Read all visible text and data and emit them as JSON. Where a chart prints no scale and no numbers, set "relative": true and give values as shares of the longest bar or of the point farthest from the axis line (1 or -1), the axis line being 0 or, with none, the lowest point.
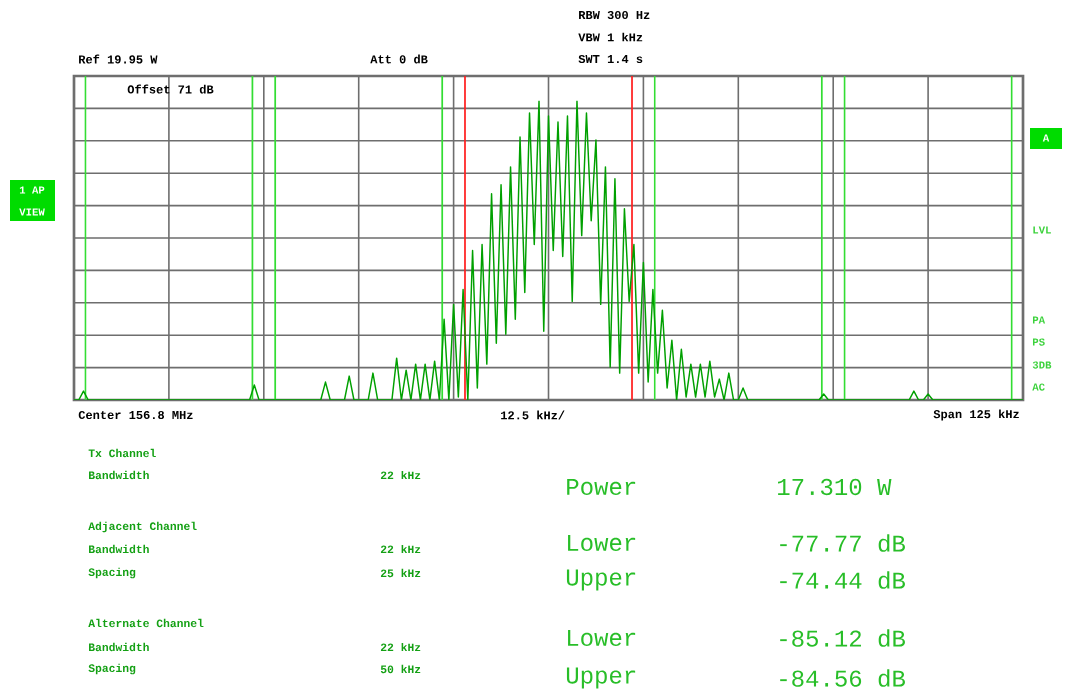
{
  "chart_data": {
    "type": "line",
    "relative": true,
    "color": "#00a000",
    "marker": "none",
    "line_style": "solid",
    "grid": true,
    "categories": [
      null,
      null,
      null,
      null,
      null,
      null,
      null,
      null,
      null,
      null,
      null,
      null,
      null,
      null,
      null,
      null,
      null,
      null,
      null,
      null,
      null,
      null,
      null,
      null,
      null,
      null,
      null,
      null,
      null,
      null,
      null,
      null,
      null,
      null,
      null,
      null,
      null,
      null,
      null,
      null,
      null,
      null,
      null,
      null,
      null,
      null,
      null,
      null,
      null,
      null,
      null,
      null,
      null,
      null,
      null,
      null,
      null,
      null,
      null,
      null,
      null,
      null,
      null,
      null,
      null,
      null,
      null,
      null,
      null,
      null,
      null,
      null,
      null,
      null,
      null,
      null,
      null,
      null,
      null,
      null,
      null,
      null,
      null,
      null,
      null,
      null,
      null,
      null,
      null,
      null,
      null,
      null,
      null,
      null,
      null,
      null,
      null,
      null,
      null,
      null,
      null,
      null,
      null,
      null,
      null,
      null,
      null,
      null,
      null,
      null,
      null,
      null,
      null,
      null,
      null,
      null,
      null,
      null,
      null,
      null,
      null,
      null,
      null,
      null,
      null,
      null,
      null,
      null,
      null,
      null,
      null,
      null,
      null,
      null,
      null,
      null,
      null,
      null,
      null,
      null,
      null,
      null,
      null,
      null,
      null,
      null,
      null,
      null,
      null,
      null,
      null,
      null,
      null,
      null,
      null,
      null,
      null,
      null,
      null,
      null,
      null,
      null,
      null,
      null,
      null,
      null,
      null,
      null,
      null,
      null,
      null,
      null,
      null,
      null,
      null,
      null,
      null,
      null,
      null,
      null,
      null,
      null,
      null,
      null,
      null,
      null,
      null,
      null,
      null,
      null,
      null,
      null,
      null,
      null,
      null,
      null,
      null,
      null,
      null,
      null,
      null
    ],
    "values": [
      0,
      0,
      0.03,
      0,
      0,
      0,
      0,
      0,
      0,
      0,
      0,
      0,
      0,
      0,
      0,
      0,
      0,
      0,
      0,
      0,
      0,
      0,
      0,
      0,
      0,
      0,
      0,
      0,
      0,
      0,
      0,
      0,
      0,
      0,
      0,
      0,
      0,
      0,
      0.05,
      0,
      0,
      0,
      0,
      0,
      0,
      0,
      0,
      0,
      0,
      0,
      0,
      0,
      0,
      0.06,
      0,
      0,
      0,
      0,
      0.08,
      0,
      0,
      0,
      0,
      0.09,
      0,
      0,
      0,
      0,
      0.14,
      0,
      0.1,
      0,
      0.12,
      0,
      0.12,
      0,
      0.13,
      0,
      0.27,
      0,
      0.32,
      0.01,
      0.37,
      0,
      0.5,
      0.04,
      0.52,
      0.12,
      0.69,
      0.19,
      0.72,
      0.22,
      0.78,
      0.27,
      0.88,
      0.36,
      0.96,
      0.52,
      1.0,
      0.23,
      0.95,
      0.5,
      0.93,
      0.48,
      0.95,
      0.33,
      1.0,
      0.55,
      0.96,
      0.6,
      0.87,
      0.32,
      0.78,
      0.11,
      0.74,
      0.09,
      0.64,
      0.33,
      0.52,
      0.09,
      0.46,
      0.06,
      0.37,
      0.09,
      0.3,
      0.04,
      0.2,
      0,
      0.17,
      0.01,
      0.12,
      0.01,
      0.12,
      0.01,
      0.13,
      0.01,
      0.07,
      0,
      0.09,
      0,
      0,
      0.04,
      0,
      0,
      0,
      0,
      0,
      0,
      0,
      0,
      0,
      0,
      0,
      0,
      0,
      0,
      0,
      0,
      0.02,
      0,
      0,
      0,
      0,
      0,
      0,
      0,
      0,
      0,
      0,
      0,
      0,
      0,
      0,
      0,
      0,
      0,
      0,
      0.03,
      0,
      0,
      0.02,
      0,
      0,
      0,
      0,
      0,
      0,
      0,
      0,
      0,
      0,
      0,
      0,
      0,
      0,
      0,
      0,
      0,
      0,
      0,
      0
    ],
    "annotations": [
      "Ref 19.95 W",
      "Att 0 dB",
      "RBW 300 Hz",
      "VBW 1 kHz",
      "SWT 1.4 s",
      "Offset 71 dB",
      "1 AP",
      "VIEW",
      "A",
      "LVL",
      "PA",
      "PS",
      "3DB",
      "AC",
      "Center 156.8 MHz",
      "12.5 kHz/",
      "Span 125 kHz",
      "Tx Channel",
      "Bandwidth",
      "22 kHz",
      "Adjacent Channel",
      "Bandwidth",
      "22 kHz",
      "Spacing",
      "25 kHz",
      "Alternate Channel",
      "Bandwidth",
      "22 kHz",
      "Spacing",
      "50 kHz",
      "Power",
      "17.310 W",
      "Lower",
      "-77.77 dB",
      "Upper",
      "-74.44 dB",
      "Lower",
      "-85.12 dB",
      "Upper",
      "-84.56 dB"
    ]
  }
}
